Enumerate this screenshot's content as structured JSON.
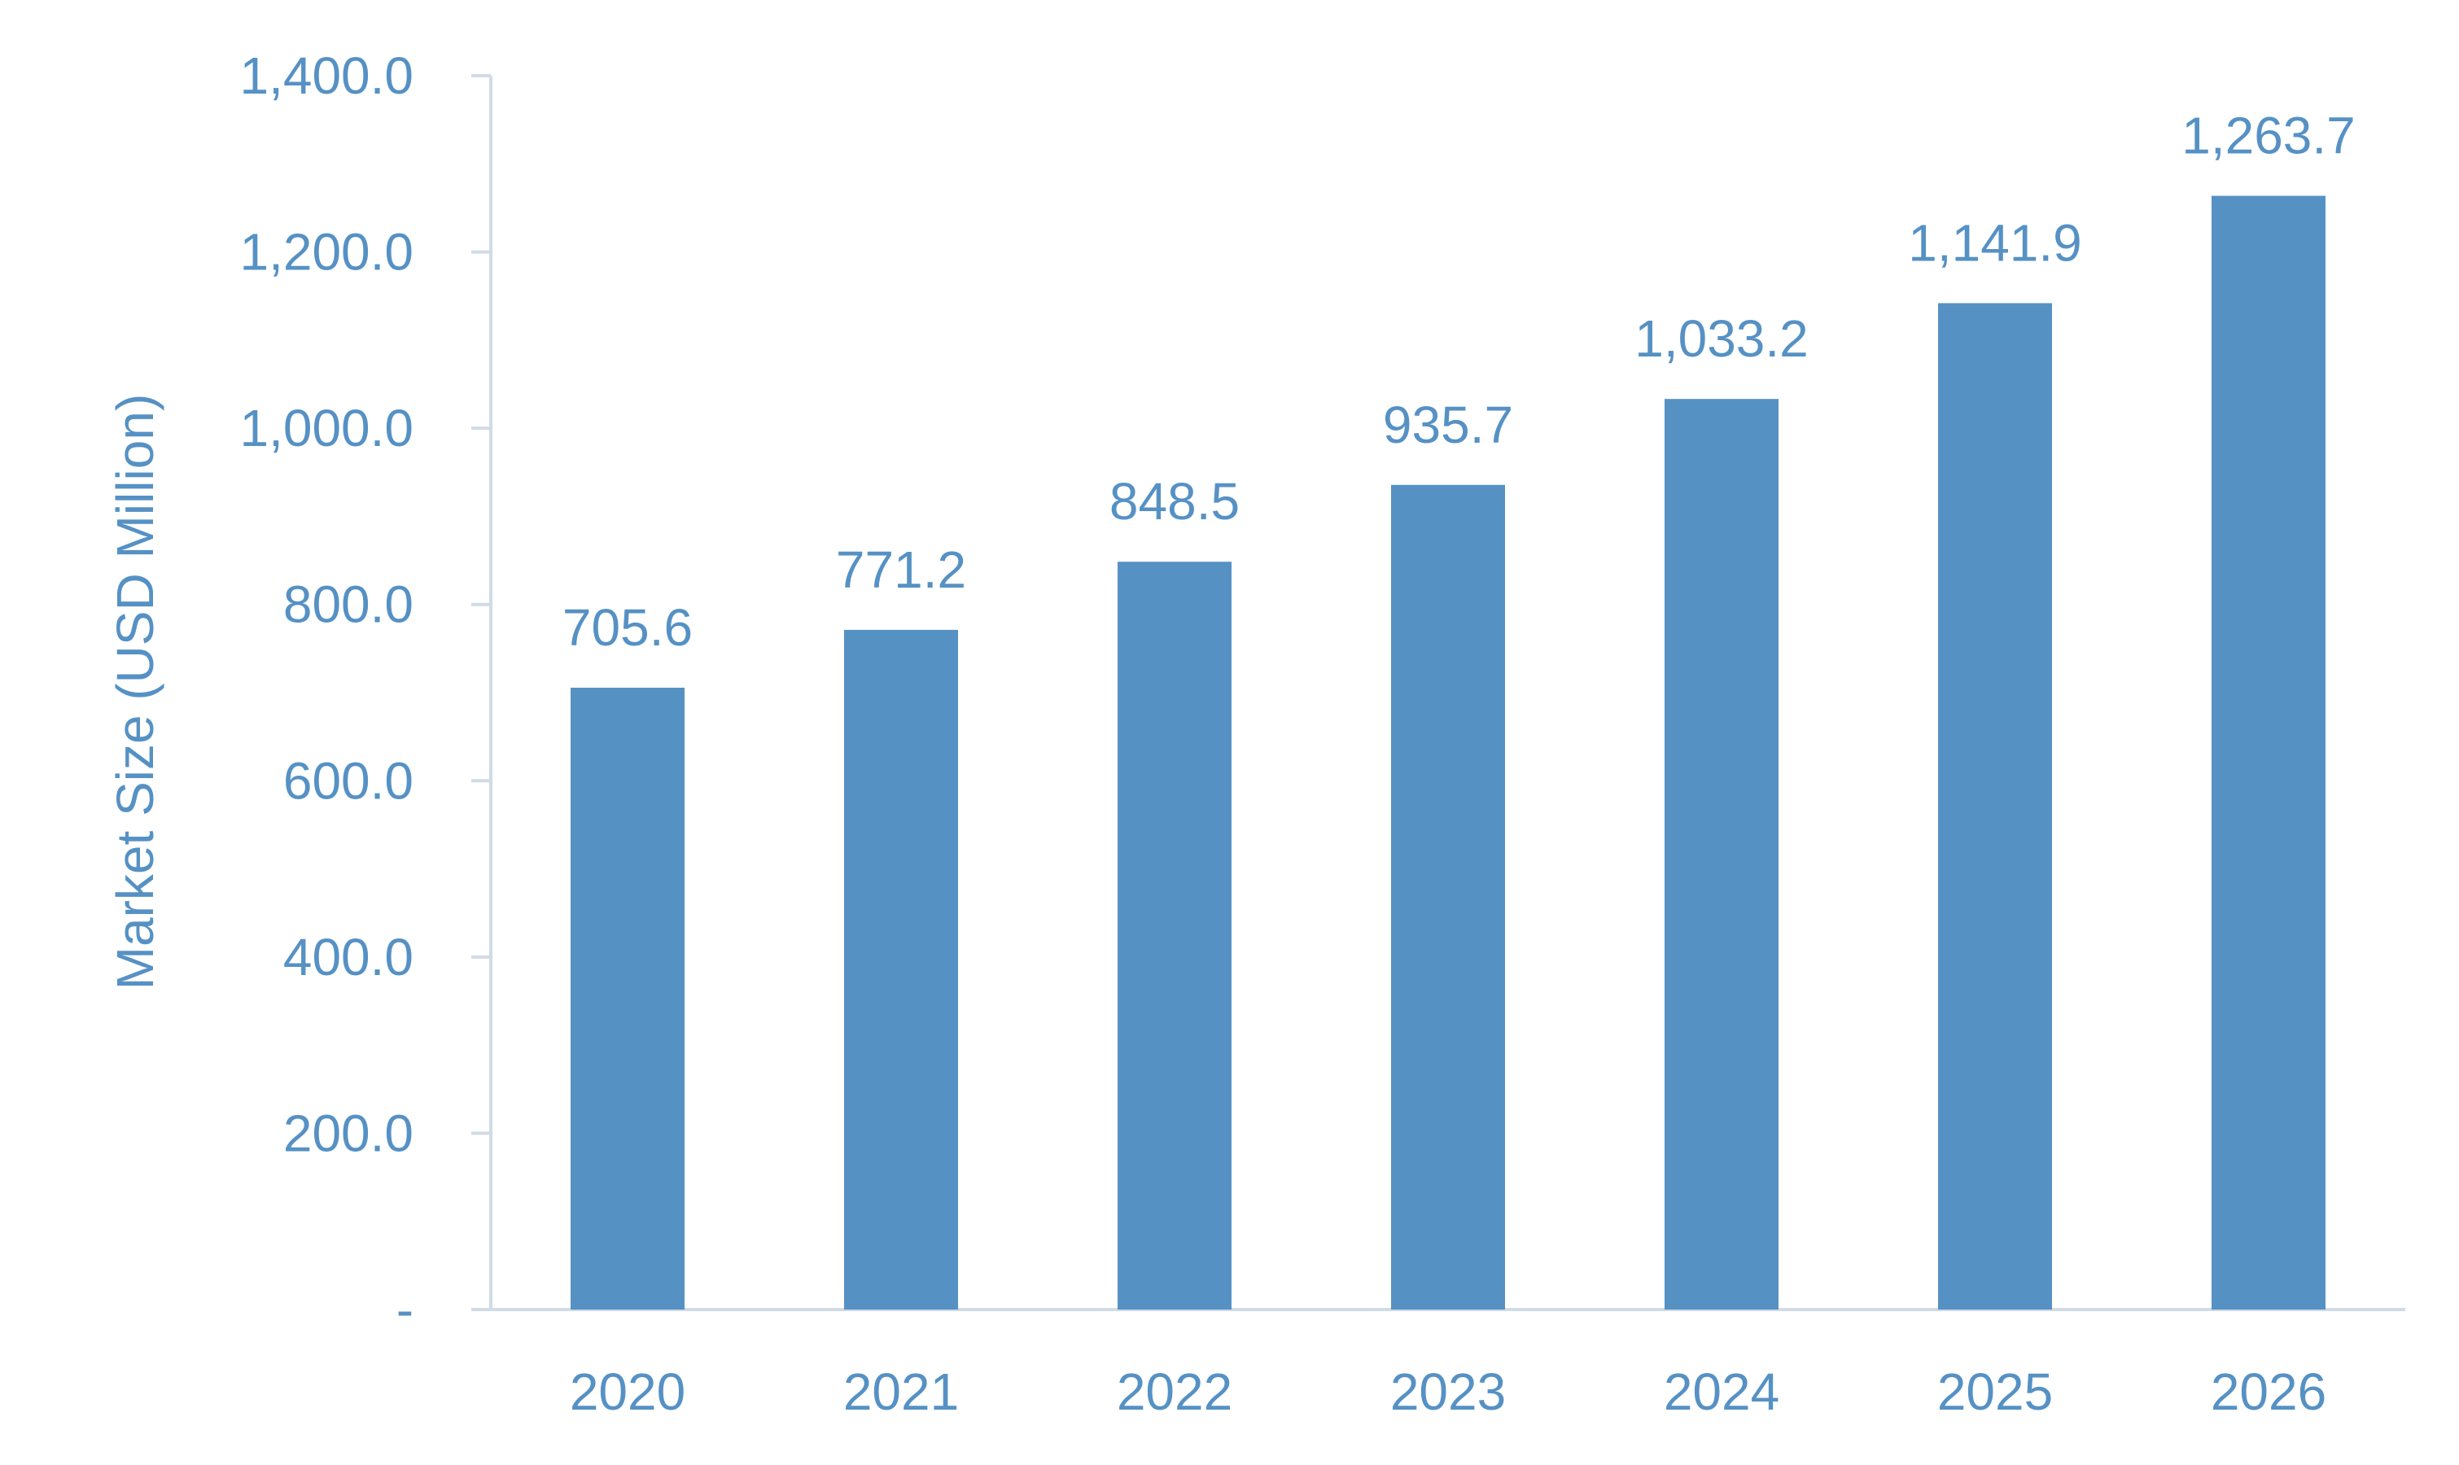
{
  "chart_data": {
    "type": "bar",
    "categories": [
      "2020",
      "2021",
      "2022",
      "2023",
      "2024",
      "2025",
      "2026"
    ],
    "values": [
      705.6,
      771.2,
      848.5,
      935.7,
      1033.2,
      1141.9,
      1263.7
    ],
    "value_labels": [
      "705.6",
      "771.2",
      "848.5",
      "935.7",
      "1,033.2",
      "1,141.9",
      "1,263.7"
    ],
    "title": "",
    "xlabel": "",
    "ylabel": "Market Size (USD Million)",
    "ylim": [
      0,
      1400
    ],
    "yticks": [
      0,
      200,
      400,
      600,
      800,
      1000,
      1200,
      1400
    ],
    "ytick_labels": [
      "-",
      "200.0",
      "400.0",
      "600.0",
      "800.0",
      "1,000.0",
      "1,200.0",
      "1,400.0"
    ],
    "grid": false,
    "legend": "none",
    "colors": {
      "bar": "#5691c4",
      "text": "#5691c4",
      "axis": "#d0dbe6"
    }
  }
}
